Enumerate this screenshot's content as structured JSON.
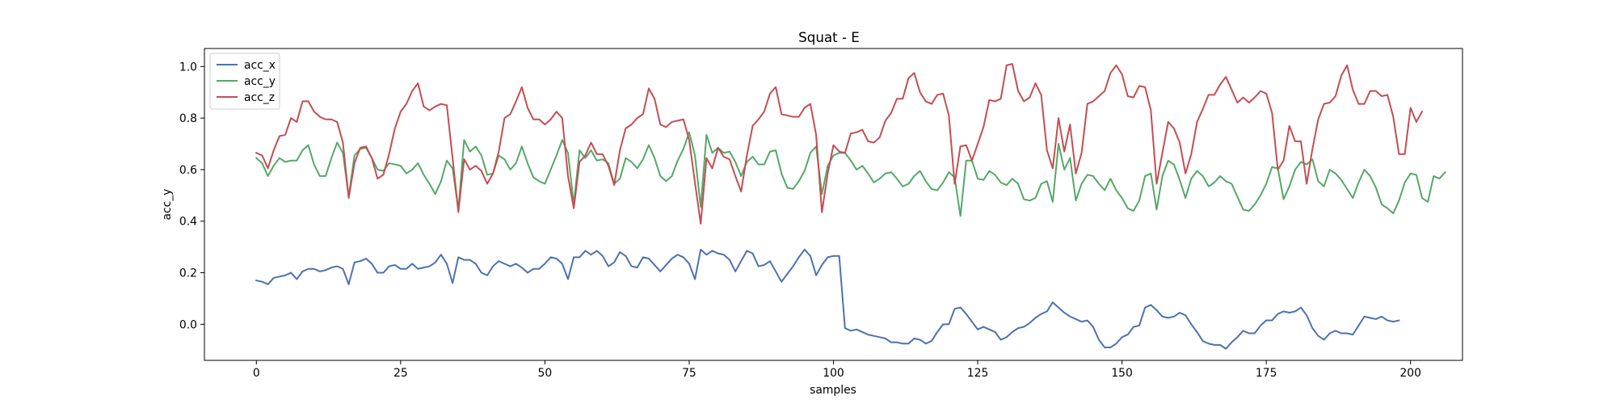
{
  "chart_data": {
    "type": "line",
    "title": "Squat - E",
    "xlabel": "samples",
    "ylabel": "acc_y",
    "xlim": [
      -9,
      209
    ],
    "ylim": [
      -0.14,
      1.07
    ],
    "xticks": [
      0,
      25,
      50,
      75,
      100,
      125,
      150,
      175,
      200
    ],
    "yticks": [
      0.0,
      0.2,
      0.4,
      0.6,
      0.8,
      1.0
    ],
    "xtick_labels": [
      "0",
      "25",
      "50",
      "75",
      "100",
      "125",
      "150",
      "175",
      "200"
    ],
    "ytick_labels": [
      "0.0",
      "0.2",
      "0.4",
      "0.6",
      "0.8",
      "1.0"
    ],
    "grid": false,
    "legend_position": "top-left",
    "series": [
      {
        "name": "acc_x",
        "color": "#4c72b0",
        "values": [
          0.17,
          0.165,
          0.155,
          0.18,
          0.185,
          0.19,
          0.2,
          0.175,
          0.205,
          0.215,
          0.215,
          0.205,
          0.21,
          0.22,
          0.225,
          0.215,
          0.155,
          0.24,
          0.245,
          0.255,
          0.235,
          0.2,
          0.2,
          0.225,
          0.23,
          0.215,
          0.215,
          0.235,
          0.215,
          0.22,
          0.225,
          0.24,
          0.27,
          0.235,
          0.16,
          0.26,
          0.25,
          0.25,
          0.235,
          0.2,
          0.19,
          0.225,
          0.245,
          0.235,
          0.225,
          0.235,
          0.22,
          0.2,
          0.215,
          0.215,
          0.235,
          0.26,
          0.255,
          0.235,
          0.175,
          0.26,
          0.26,
          0.285,
          0.27,
          0.285,
          0.265,
          0.225,
          0.24,
          0.28,
          0.265,
          0.225,
          0.22,
          0.26,
          0.255,
          0.23,
          0.205,
          0.23,
          0.255,
          0.27,
          0.26,
          0.235,
          0.175,
          0.29,
          0.27,
          0.285,
          0.275,
          0.27,
          0.25,
          0.205,
          0.245,
          0.285,
          0.275,
          0.225,
          0.23,
          0.245,
          0.205,
          0.165,
          0.195,
          0.225,
          0.26,
          0.29,
          0.265,
          0.19,
          0.23,
          0.26,
          0.265,
          0.265,
          -0.015,
          -0.025,
          -0.02,
          -0.03,
          -0.04,
          -0.045,
          -0.05,
          -0.055,
          -0.07,
          -0.07,
          -0.075,
          -0.075,
          -0.055,
          -0.06,
          -0.075,
          -0.065,
          -0.03,
          0.0,
          0.0,
          0.06,
          0.065,
          0.04,
          0.01,
          -0.02,
          -0.01,
          -0.02,
          -0.03,
          -0.06,
          -0.05,
          -0.03,
          -0.015,
          -0.01,
          0.005,
          0.025,
          0.04,
          0.05,
          0.085,
          0.065,
          0.045,
          0.03,
          0.02,
          0.01,
          0.015,
          -0.01,
          -0.06,
          -0.09,
          -0.09,
          -0.075,
          -0.05,
          -0.04,
          -0.01,
          -0.005,
          0.065,
          0.075,
          0.055,
          0.03,
          0.025,
          0.03,
          0.045,
          0.035,
          0.0,
          -0.03,
          -0.065,
          -0.075,
          -0.08,
          -0.08,
          -0.095,
          -0.07,
          -0.05,
          -0.025,
          -0.035,
          -0.035,
          -0.005,
          0.015,
          0.015,
          0.04,
          0.05,
          0.045,
          0.05,
          0.065,
          0.035,
          -0.015,
          -0.045,
          -0.06,
          -0.035,
          -0.025,
          -0.035,
          -0.035,
          -0.04,
          -0.005,
          0.03,
          0.025,
          0.02,
          0.03,
          0.015,
          0.01,
          0.015
        ]
      },
      {
        "name": "acc_y",
        "color": "#55a868",
        "values": [
          0.645,
          0.625,
          0.575,
          0.615,
          0.645,
          0.63,
          0.635,
          0.635,
          0.675,
          0.695,
          0.62,
          0.575,
          0.575,
          0.645,
          0.705,
          0.665,
          0.495,
          0.655,
          0.68,
          0.685,
          0.645,
          0.6,
          0.595,
          0.625,
          0.62,
          0.615,
          0.585,
          0.6,
          0.625,
          0.58,
          0.545,
          0.505,
          0.555,
          0.635,
          0.605,
          0.445,
          0.715,
          0.67,
          0.69,
          0.655,
          0.58,
          0.585,
          0.655,
          0.64,
          0.6,
          0.625,
          0.69,
          0.625,
          0.57,
          0.555,
          0.545,
          0.6,
          0.655,
          0.715,
          0.665,
          0.465,
          0.675,
          0.645,
          0.675,
          0.635,
          0.64,
          0.625,
          0.545,
          0.565,
          0.645,
          0.63,
          0.605,
          0.64,
          0.695,
          0.645,
          0.575,
          0.555,
          0.575,
          0.635,
          0.68,
          0.745,
          0.655,
          0.455,
          0.735,
          0.665,
          0.685,
          0.665,
          0.67,
          0.63,
          0.575,
          0.63,
          0.65,
          0.62,
          0.62,
          0.67,
          0.675,
          0.585,
          0.53,
          0.525,
          0.555,
          0.595,
          0.665,
          0.69,
          0.505,
          0.615,
          0.655,
          0.665,
          0.665,
          0.635,
          0.6,
          0.615,
          0.585,
          0.55,
          0.565,
          0.585,
          0.59,
          0.565,
          0.535,
          0.545,
          0.575,
          0.595,
          0.555,
          0.525,
          0.52,
          0.55,
          0.59,
          0.57,
          0.42,
          0.635,
          0.635,
          0.565,
          0.56,
          0.595,
          0.58,
          0.55,
          0.54,
          0.565,
          0.545,
          0.485,
          0.48,
          0.49,
          0.545,
          0.555,
          0.475,
          0.7,
          0.6,
          0.645,
          0.48,
          0.545,
          0.58,
          0.575,
          0.545,
          0.52,
          0.565,
          0.52,
          0.49,
          0.45,
          0.44,
          0.48,
          0.575,
          0.585,
          0.445,
          0.575,
          0.635,
          0.62,
          0.56,
          0.49,
          0.565,
          0.595,
          0.575,
          0.535,
          0.55,
          0.575,
          0.555,
          0.545,
          0.495,
          0.445,
          0.44,
          0.465,
          0.5,
          0.545,
          0.61,
          0.605,
          0.485,
          0.535,
          0.6,
          0.63,
          0.62,
          0.64,
          0.555,
          0.535,
          0.6,
          0.585,
          0.56,
          0.525,
          0.49,
          0.55,
          0.6,
          0.575,
          0.53,
          0.465,
          0.45,
          0.43,
          0.48,
          0.55,
          0.585,
          0.58,
          0.49,
          0.475,
          0.575,
          0.565,
          0.59
        ]
      },
      {
        "name": "acc_z",
        "color": "#c44e52",
        "values": [
          0.665,
          0.655,
          0.605,
          0.675,
          0.73,
          0.735,
          0.8,
          0.785,
          0.865,
          0.865,
          0.825,
          0.805,
          0.795,
          0.795,
          0.785,
          0.705,
          0.49,
          0.625,
          0.685,
          0.69,
          0.645,
          0.565,
          0.58,
          0.66,
          0.76,
          0.825,
          0.855,
          0.905,
          0.935,
          0.845,
          0.83,
          0.845,
          0.855,
          0.85,
          0.645,
          0.435,
          0.64,
          0.6,
          0.615,
          0.595,
          0.545,
          0.585,
          0.67,
          0.8,
          0.815,
          0.865,
          0.92,
          0.84,
          0.795,
          0.795,
          0.775,
          0.795,
          0.825,
          0.8,
          0.575,
          0.45,
          0.63,
          0.655,
          0.705,
          0.66,
          0.66,
          0.615,
          0.54,
          0.675,
          0.76,
          0.775,
          0.8,
          0.815,
          0.915,
          0.875,
          0.775,
          0.765,
          0.785,
          0.79,
          0.795,
          0.715,
          0.55,
          0.39,
          0.645,
          0.605,
          0.685,
          0.65,
          0.64,
          0.575,
          0.515,
          0.655,
          0.77,
          0.795,
          0.825,
          0.895,
          0.92,
          0.815,
          0.81,
          0.805,
          0.805,
          0.84,
          0.855,
          0.735,
          0.435,
          0.585,
          0.695,
          0.67,
          0.665,
          0.74,
          0.745,
          0.755,
          0.71,
          0.705,
          0.725,
          0.79,
          0.82,
          0.875,
          0.875,
          0.955,
          0.975,
          0.9,
          0.865,
          0.855,
          0.89,
          0.895,
          0.81,
          0.545,
          0.69,
          0.695,
          0.635,
          0.7,
          0.765,
          0.87,
          0.865,
          0.875,
          1.005,
          1.01,
          0.905,
          0.865,
          0.88,
          0.935,
          0.89,
          0.675,
          0.605,
          0.8,
          0.67,
          0.775,
          0.585,
          0.665,
          0.855,
          0.865,
          0.885,
          0.905,
          0.975,
          1.005,
          0.97,
          0.885,
          0.88,
          0.925,
          0.92,
          0.83,
          0.545,
          0.665,
          0.785,
          0.76,
          0.705,
          0.585,
          0.66,
          0.785,
          0.835,
          0.89,
          0.89,
          0.93,
          0.96,
          0.91,
          0.86,
          0.88,
          0.86,
          0.88,
          0.905,
          0.895,
          0.82,
          0.6,
          0.635,
          0.77,
          0.71,
          0.71,
          0.545,
          0.68,
          0.795,
          0.855,
          0.86,
          0.885,
          0.965,
          1.005,
          0.91,
          0.855,
          0.855,
          0.905,
          0.905,
          0.885,
          0.89,
          0.805,
          0.66,
          0.66,
          0.84,
          0.785,
          0.825
        ]
      }
    ]
  }
}
